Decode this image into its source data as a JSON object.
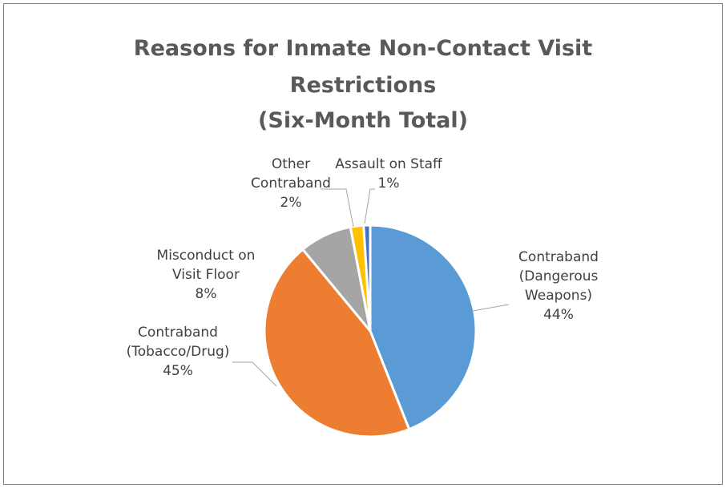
{
  "chart_data": {
    "type": "pie",
    "title": "Reasons for Inmate Non-Contact Visit Restrictions (Six-Month Total)",
    "title_lines": [
      "Reasons for Inmate Non-Contact Visit",
      "Restrictions",
      "(Six-Month Total)"
    ],
    "slices": [
      {
        "label": "Contraband (Dangerous Weapons)",
        "label_lines": [
          "Contraband",
          "(Dangerous",
          "Weapons)"
        ],
        "value": 44,
        "value_label": "44%",
        "color": "#5b9bd5"
      },
      {
        "label": "Contraband (Tobacco/Drug)",
        "label_lines": [
          "Contraband",
          "(Tobacco/Drug)"
        ],
        "value": 45,
        "value_label": "45%",
        "color": "#ed7d31"
      },
      {
        "label": "Misconduct on Visit Floor",
        "label_lines": [
          "Misconduct on",
          "Visit Floor"
        ],
        "value": 8,
        "value_label": "8%",
        "color": "#a5a5a5"
      },
      {
        "label": "Other Contraband",
        "label_lines": [
          "Other",
          "Contraband"
        ],
        "value": 2,
        "value_label": "2%",
        "color": "#ffc000"
      },
      {
        "label": "Assault on Staff",
        "label_lines": [
          "Assault on Staff"
        ],
        "value": 1,
        "value_label": "1%",
        "color": "#4472c4"
      }
    ]
  }
}
